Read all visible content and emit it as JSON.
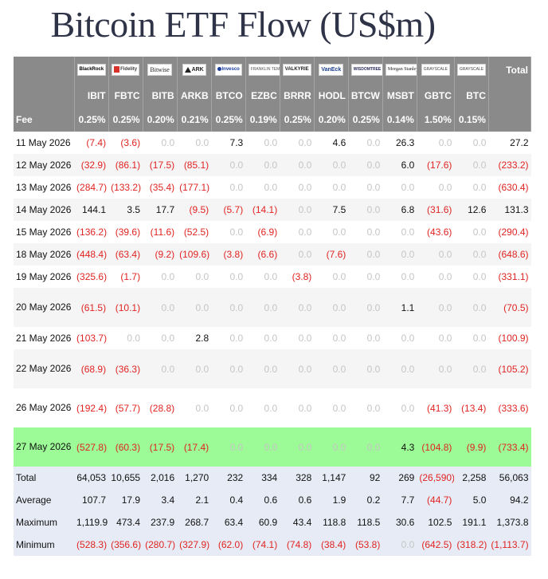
{
  "title": "Bitcoin ETF Flow (US$m)",
  "logos": [
    "BlackRock",
    "Fidelity",
    "Bitwise",
    "ARK",
    "Invesco",
    "FRANKLIN TEMPLETON",
    "VALKYRIE",
    "VanEck",
    "WISDOMTREE",
    "Morgan Stanley",
    "GRAYSCALE",
    "GRAYSCALE"
  ],
  "total_header": "Total",
  "tickers": [
    "IBIT",
    "FBTC",
    "BITB",
    "ARKB",
    "BTCO",
    "EZBC",
    "BRRR",
    "HODL",
    "BTCW",
    "MSBT",
    "GBTC",
    "BTC"
  ],
  "fee_label": "Fee",
  "fees": [
    "0.25%",
    "0.25%",
    "0.20%",
    "0.21%",
    "0.25%",
    "0.19%",
    "0.25%",
    "0.20%",
    "0.25%",
    "0.14%",
    "1.50%",
    "0.15%"
  ],
  "rows": [
    {
      "date": "11 May 2026",
      "values": [
        "(7.4)",
        "(3.6)",
        "0.0",
        "0.0",
        "7.3",
        "0.0",
        "0.0",
        "4.6",
        "0.0",
        "26.3",
        "0.0",
        "0.0"
      ],
      "total": "27.2"
    },
    {
      "date": "12 May 2026",
      "values": [
        "(32.9)",
        "(86.1)",
        "(17.5)",
        "(85.1)",
        "0.0",
        "0.0",
        "0.0",
        "0.0",
        "0.0",
        "6.0",
        "(17.6)",
        "0.0"
      ],
      "total": "(233.2)"
    },
    {
      "date": "13 May 2026",
      "values": [
        "(284.7)",
        "(133.2)",
        "(35.4)",
        "(177.1)",
        "0.0",
        "0.0",
        "0.0",
        "0.0",
        "0.0",
        "0.0",
        "0.0",
        "0.0"
      ],
      "total": "(630.4)"
    },
    {
      "date": "14 May 2026",
      "values": [
        "144.1",
        "3.5",
        "17.7",
        "(9.5)",
        "(5.7)",
        "(14.1)",
        "0.0",
        "7.5",
        "0.0",
        "6.8",
        "(31.6)",
        "12.6"
      ],
      "total": "131.3"
    },
    {
      "date": "15 May 2026",
      "values": [
        "(136.2)",
        "(39.6)",
        "(11.6)",
        "(52.5)",
        "0.0",
        "(6.9)",
        "0.0",
        "0.0",
        "0.0",
        "0.0",
        "(43.6)",
        "0.0"
      ],
      "total": "(290.4)"
    },
    {
      "date": "18 May 2026",
      "values": [
        "(448.4)",
        "(63.4)",
        "(9.2)",
        "(109.6)",
        "(3.8)",
        "(6.6)",
        "0.0",
        "(7.6)",
        "0.0",
        "0.0",
        "0.0",
        "0.0"
      ],
      "total": "(648.6)"
    },
    {
      "date": "19 May 2026",
      "values": [
        "(325.6)",
        "(1.7)",
        "0.0",
        "0.0",
        "0.0",
        "0.0",
        "(3.8)",
        "0.0",
        "0.0",
        "0.0",
        "0.0",
        "0.0"
      ],
      "total": "(331.1)"
    },
    {
      "date": "20 May 2026",
      "values": [
        "(61.5)",
        "(10.1)",
        "0.0",
        "0.0",
        "0.0",
        "0.0",
        "0.0",
        "0.0",
        "0.0",
        "1.1",
        "0.0",
        "0.0"
      ],
      "total": "(70.5)"
    },
    {
      "date": "21 May 2026",
      "values": [
        "(103.7)",
        "0.0",
        "0.0",
        "2.8",
        "0.0",
        "0.0",
        "0.0",
        "0.0",
        "0.0",
        "0.0",
        "0.0",
        "0.0"
      ],
      "total": "(100.9)"
    },
    {
      "date": "22 May 2026",
      "values": [
        "(68.9)",
        "(36.3)",
        "0.0",
        "0.0",
        "0.0",
        "0.0",
        "0.0",
        "0.0",
        "0.0",
        "0.0",
        "0.0",
        "0.0"
      ],
      "total": "(105.2)"
    },
    {
      "date": "26 May 2026",
      "values": [
        "(192.4)",
        "(57.7)",
        "(28.8)",
        "0.0",
        "0.0",
        "0.0",
        "0.0",
        "0.0",
        "0.0",
        "0.0",
        "(41.3)",
        "(13.4)"
      ],
      "total": "(333.6)"
    },
    {
      "date": "27 May 2026",
      "values": [
        "(527.8)",
        "(60.3)",
        "(17.5)",
        "(17.4)",
        "0.0",
        "0.0",
        "0.0",
        "0.0",
        "0.0",
        "4.3",
        "(104.8)",
        "(9.9)"
      ],
      "total": "(733.4)",
      "highlight": true
    }
  ],
  "summary": [
    {
      "label": "Total",
      "values": [
        "64,053",
        "10,655",
        "2,016",
        "1,270",
        "232",
        "334",
        "328",
        "1,147",
        "92",
        "269",
        "(26,590)",
        "2,258"
      ],
      "total": "56,063"
    },
    {
      "label": "Average",
      "values": [
        "107.7",
        "17.9",
        "3.4",
        "2.1",
        "0.4",
        "0.6",
        "0.6",
        "1.9",
        "0.2",
        "7.7",
        "(44.7)",
        "5.0"
      ],
      "total": "94.2"
    },
    {
      "label": "Maximum",
      "values": [
        "1,119.9",
        "473.4",
        "237.9",
        "268.7",
        "63.4",
        "60.9",
        "43.4",
        "118.8",
        "118.5",
        "30.6",
        "102.5",
        "191.1"
      ],
      "total": "1,373.8"
    },
    {
      "label": "Minimum",
      "values": [
        "(528.3)",
        "(356.6)",
        "(280.7)",
        "(327.9)",
        "(62.0)",
        "(74.1)",
        "(74.8)",
        "(38.4)",
        "(53.8)",
        "0.0",
        "(642.5)",
        "(318.2)"
      ],
      "total": "(1,113.7)"
    }
  ],
  "colors": {
    "header_bg": "#8a8a8a",
    "negative": "#e02422",
    "zero": "#c5c5c5",
    "highlight": "#9cfb96",
    "summary_bg": "#e7ebf5",
    "title": "#2f3347"
  }
}
